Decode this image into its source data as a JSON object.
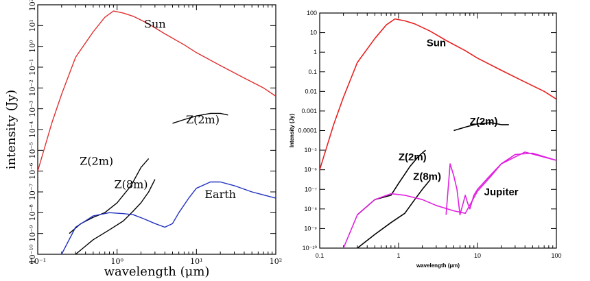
{
  "chart_data": [
    {
      "type": "line",
      "xscale": "log",
      "yscale": "log",
      "xlim": [
        0.1,
        100
      ],
      "ylim": [
        1e-10,
        100
      ],
      "xlabel": "wavelength (μm)",
      "ylabel": "intensity (Jy)",
      "x_tick_labels": [
        "10⁻¹",
        "10⁰",
        "10¹",
        "10²"
      ],
      "y_tick_labels": [
        "10⁻¹⁰",
        "10⁻⁹",
        "10⁻⁸",
        "10⁻⁷",
        "10⁻⁶",
        "10⁻⁵",
        "10⁻⁴",
        "10⁻³",
        "10⁻²",
        "10⁻¹",
        "10⁰",
        "10¹",
        "10²"
      ],
      "annotations": [
        "Sun",
        "Z(2m)",
        "Z(2m)",
        "Z(8m)",
        "Earth"
      ],
      "series": [
        {
          "name": "Sun",
          "color": "#e03030",
          "x": [
            0.1,
            0.15,
            0.2,
            0.3,
            0.5,
            0.7,
            0.9,
            1.2,
            1.6,
            2.5,
            4,
            7,
            10,
            20,
            40,
            70,
            100
          ],
          "y": [
            1e-06,
            0.0002,
            0.005,
            0.3,
            5,
            25,
            50,
            40,
            28,
            12,
            4,
            1.2,
            0.5,
            0.12,
            0.03,
            0.01,
            0.004
          ]
        },
        {
          "name": "Zodiacal Z(2m) upper",
          "color": "#000000",
          "x": [
            5,
            7,
            10,
            15,
            20,
            25
          ],
          "y": [
            0.0002,
            0.0003,
            0.00045,
            0.0006,
            0.0006,
            0.0005
          ]
        },
        {
          "name": "Z(2m)",
          "color": "#000000",
          "x": [
            0.25,
            0.35,
            0.5,
            0.7,
            1.0,
            1.5,
            2.0,
            2.5
          ],
          "y": [
            1e-09,
            3e-09,
            6e-09,
            1e-08,
            3e-08,
            2e-07,
            1.5e-06,
            4e-06
          ]
        },
        {
          "name": "Z(8m)",
          "color": "#000000",
          "x": [
            0.3,
            0.5,
            0.8,
            1.2,
            1.6,
            2.0,
            2.5,
            3.0
          ],
          "y": [
            1e-10,
            5e-10,
            1.5e-09,
            4e-09,
            1.2e-08,
            3e-08,
            1e-07,
            4e-07
          ]
        },
        {
          "name": "Earth",
          "color": "#2030c0",
          "x": [
            0.2,
            0.3,
            0.5,
            0.8,
            1.2,
            1.6,
            2.2,
            3,
            4,
            5,
            6,
            8,
            10,
            15,
            20,
            30,
            50,
            100
          ],
          "y": [
            1e-10,
            2e-09,
            7e-09,
            1e-08,
            9e-09,
            8e-09,
            5e-09,
            3e-09,
            2e-09,
            3e-09,
            1e-08,
            5e-08,
            1.5e-07,
            3e-07,
            3e-07,
            2e-07,
            1e-07,
            5e-08
          ]
        }
      ]
    },
    {
      "type": "line",
      "xscale": "log",
      "yscale": "log",
      "xlim": [
        0.1,
        100
      ],
      "ylim": [
        1e-10,
        100
      ],
      "xlabel": "wavelength (μm)",
      "ylabel": "Intensity (Jy)",
      "x_tick_labels": [
        "0.1",
        "1",
        "10",
        "100"
      ],
      "y_tick_labels": [
        "10⁻¹⁰",
        "10⁻⁹",
        "10⁻⁸",
        "10⁻⁷",
        "10⁻⁶",
        "10⁻⁵",
        "0.0001",
        "0.001",
        "0.01",
        "0.1",
        "1",
        "10",
        "100"
      ],
      "annotations": [
        "Sun",
        "Z(2m)",
        "Z(2m)",
        "Z(8m)",
        "Jupiter"
      ],
      "series": [
        {
          "name": "Sun",
          "color": "#e82020",
          "x": [
            0.1,
            0.15,
            0.2,
            0.3,
            0.5,
            0.7,
            0.9,
            1.2,
            1.6,
            2.5,
            4,
            7,
            10,
            20,
            40,
            70,
            100
          ],
          "y": [
            1e-06,
            0.0002,
            0.005,
            0.3,
            5,
            25,
            50,
            40,
            28,
            12,
            4,
            1.2,
            0.5,
            0.12,
            0.03,
            0.01,
            0.004
          ]
        },
        {
          "name": "Zodiacal Z(2m) upper",
          "color": "#000000",
          "x": [
            5,
            7,
            10,
            15,
            20,
            25
          ],
          "y": [
            0.0001,
            0.00015,
            0.00022,
            0.00025,
            0.0002,
            0.0002
          ]
        },
        {
          "name": "Z(2m)",
          "color": "#000000",
          "x": [
            0.3,
            0.5,
            0.8,
            1.0,
            1.4,
            1.8,
            2.2
          ],
          "y": [
            5e-09,
            3e-08,
            5e-08,
            2e-07,
            1.5e-06,
            5e-06,
            1e-05
          ]
        },
        {
          "name": "Z(8m)",
          "color": "#000000",
          "x": [
            0.3,
            0.5,
            0.8,
            1.2,
            1.6,
            2.0,
            2.5
          ],
          "y": [
            1e-10,
            5e-10,
            2e-09,
            6e-09,
            3e-08,
            1e-07,
            3e-07
          ]
        },
        {
          "name": "Jupiter continuum",
          "color": "#e020e0",
          "x": [
            0.2,
            0.3,
            0.5,
            0.8,
            1.2,
            2,
            3,
            5,
            7,
            10,
            15,
            20,
            30,
            50,
            100
          ],
          "y": [
            1e-10,
            5e-09,
            3e-08,
            6e-08,
            5e-08,
            3e-08,
            1.5e-08,
            8e-09,
            6e-09,
            8e-08,
            5e-07,
            2e-06,
            6e-06,
            7e-06,
            3e-06
          ]
        },
        {
          "name": "Jupiter spectrum",
          "color": "#e020e0",
          "x": [
            4,
            4.5,
            5,
            5.5,
            6,
            7,
            7.5,
            8,
            9,
            10,
            15,
            20,
            40,
            100
          ],
          "y": [
            5e-09,
            2e-06,
            5e-07,
            1e-07,
            5e-09,
            5e-08,
            2e-08,
            1e-08,
            5e-08,
            1e-07,
            6e-07,
            2e-06,
            8e-06,
            3e-06
          ]
        }
      ]
    }
  ],
  "colors": {
    "sun_left": "#e03030",
    "sun_right": "#e82020",
    "earth": "#2030c0",
    "jupiter": "#e020e0",
    "zodiacal": "#000000"
  }
}
